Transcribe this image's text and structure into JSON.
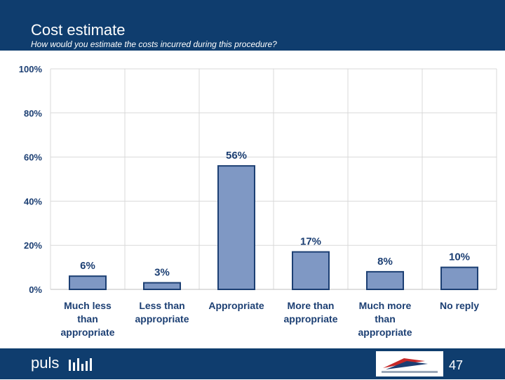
{
  "header": {
    "title": "Cost estimate",
    "subtitle": "How would you estimate the costs incurred during this procedure?"
  },
  "footer": {
    "brand": "puls",
    "page_number": "47",
    "partner_logo_icon": "partner-logo"
  },
  "colors": {
    "header_bg": "#0f3d6e",
    "bar_fill": "#7f98c4",
    "bar_stroke": "#1c3f73"
  },
  "chart_data": {
    "type": "bar",
    "categories": [
      "Much less than appropriate",
      "Less than appropriate",
      "Appropriate",
      "More than appropriate",
      "Much more than appropriate",
      "No reply"
    ],
    "category_lines": [
      [
        "Much less",
        "than",
        "appropriate"
      ],
      [
        "Less than",
        "appropriate"
      ],
      [
        "Appropriate"
      ],
      [
        "More than",
        "appropriate"
      ],
      [
        "Much more",
        "than",
        "appropriate"
      ],
      [
        "No reply"
      ]
    ],
    "values": [
      6,
      3,
      56,
      17,
      8,
      10
    ],
    "data_labels": [
      "6%",
      "3%",
      "56%",
      "17%",
      "8%",
      "10%"
    ],
    "ylim": [
      0,
      100
    ],
    "yticks": [
      0,
      20,
      40,
      60,
      80,
      100
    ],
    "ytick_labels": [
      "0%",
      "20%",
      "40%",
      "60%",
      "80%",
      "100%"
    ],
    "grid": true,
    "legend": "none"
  }
}
